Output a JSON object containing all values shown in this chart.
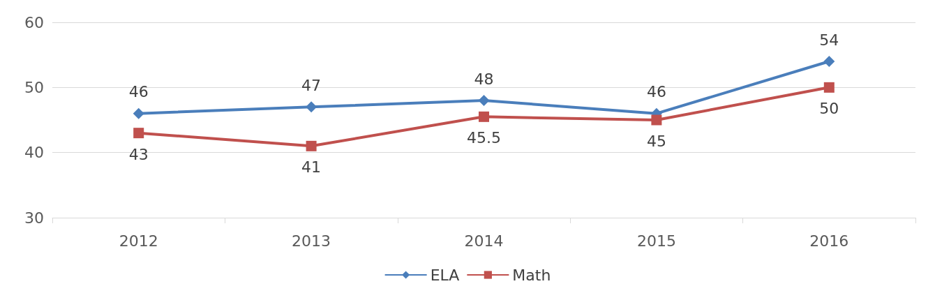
{
  "chart_data": {
    "type": "line",
    "categories": [
      "2012",
      "2013",
      "2014",
      "2015",
      "2016"
    ],
    "series": [
      {
        "name": "ELA",
        "color": "#4a7ebb",
        "values": [
          46,
          47,
          48,
          46,
          54
        ],
        "marker": "diamond"
      },
      {
        "name": "Math",
        "color": "#c0504d",
        "values": [
          43,
          41,
          45.5,
          45,
          50
        ],
        "marker": "square"
      }
    ],
    "ylim": [
      30,
      60
    ],
    "yticks": [
      30,
      40,
      50,
      60
    ],
    "grid": "y",
    "legend": "bottom",
    "data_labels": true
  }
}
